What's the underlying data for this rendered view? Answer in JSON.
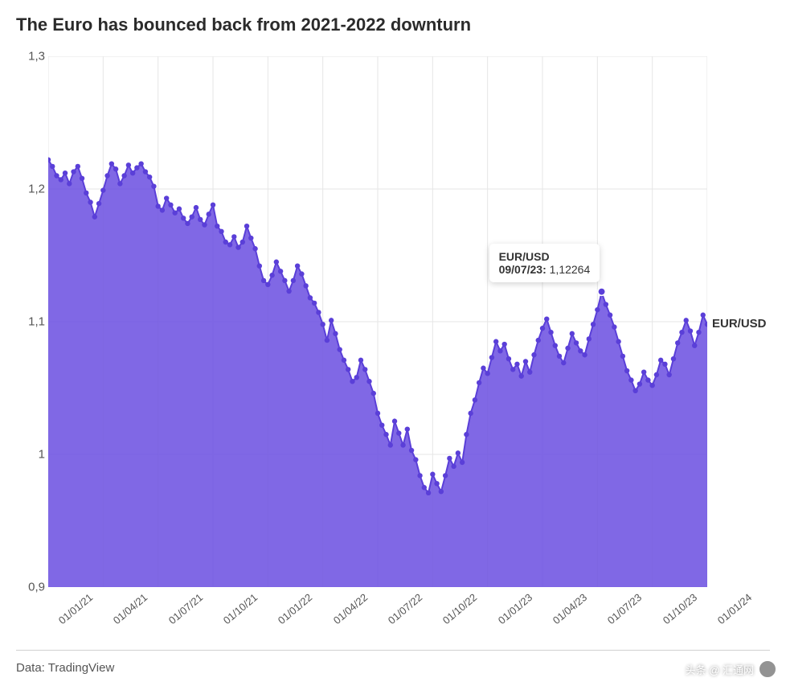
{
  "title": "The Euro has bounced back from 2021-2022 downturn",
  "source": "Data: TradingView",
  "watermark": "头条 @ 汇通网",
  "chart": {
    "type": "area",
    "series_name": "EUR/USD",
    "background_color": "#ffffff",
    "grid_color": "#e6e6e6",
    "axis_color": "#cccccc",
    "line_color": "#5a3fd8",
    "fill_color": "#6a4ee0",
    "fill_opacity": 0.85,
    "marker_color": "#5a3fd8",
    "marker_radius": 3.2,
    "line_width": 2,
    "title_fontsize": 22,
    "label_fontsize": 15,
    "tick_fontsize": 13,
    "ylim": [
      0.9,
      1.3
    ],
    "yticks": [
      0.9,
      1.0,
      1.1,
      1.2,
      1.3
    ],
    "ytick_labels": [
      "0,9",
      "1",
      "1,1",
      "1,2",
      "1,3"
    ],
    "x_categories": [
      "01/01/21",
      "01/04/21",
      "01/07/21",
      "01/10/21",
      "01/01/22",
      "01/04/22",
      "01/07/22",
      "01/10/22",
      "01/01/23",
      "01/04/23",
      "01/07/23",
      "01/10/23",
      "01/01/24"
    ],
    "x_tick_indices": [
      0,
      13,
      26,
      39,
      52,
      65,
      78,
      91,
      104,
      117,
      130,
      143,
      156
    ],
    "tooltip": {
      "series": "EUR/USD",
      "date": "09/07/23",
      "value": "1,12264",
      "y_value": 1.12264,
      "data_index": 131
    },
    "values": [
      1.222,
      1.217,
      1.21,
      1.207,
      1.212,
      1.204,
      1.213,
      1.217,
      1.208,
      1.197,
      1.19,
      1.179,
      1.189,
      1.199,
      1.21,
      1.219,
      1.215,
      1.204,
      1.21,
      1.218,
      1.212,
      1.216,
      1.219,
      1.213,
      1.209,
      1.202,
      1.187,
      1.184,
      1.193,
      1.188,
      1.182,
      1.185,
      1.178,
      1.174,
      1.179,
      1.186,
      1.177,
      1.173,
      1.181,
      1.188,
      1.172,
      1.168,
      1.16,
      1.158,
      1.164,
      1.156,
      1.16,
      1.172,
      1.163,
      1.155,
      1.142,
      1.131,
      1.128,
      1.135,
      1.145,
      1.138,
      1.131,
      1.123,
      1.131,
      1.142,
      1.136,
      1.127,
      1.118,
      1.114,
      1.107,
      1.098,
      1.086,
      1.101,
      1.091,
      1.079,
      1.071,
      1.064,
      1.055,
      1.058,
      1.071,
      1.064,
      1.055,
      1.046,
      1.031,
      1.022,
      1.015,
      1.007,
      1.025,
      1.016,
      1.007,
      1.019,
      1.003,
      0.996,
      0.984,
      0.975,
      0.971,
      0.985,
      0.978,
      0.972,
      0.984,
      0.997,
      0.991,
      1.001,
      0.994,
      1.015,
      1.031,
      1.041,
      1.054,
      1.065,
      1.061,
      1.073,
      1.085,
      1.078,
      1.083,
      1.072,
      1.064,
      1.068,
      1.059,
      1.07,
      1.062,
      1.075,
      1.086,
      1.095,
      1.102,
      1.092,
      1.082,
      1.074,
      1.069,
      1.08,
      1.091,
      1.084,
      1.078,
      1.075,
      1.087,
      1.098,
      1.109,
      1.122,
      1.113,
      1.105,
      1.096,
      1.085,
      1.074,
      1.063,
      1.056,
      1.048,
      1.053,
      1.062,
      1.056,
      1.052,
      1.06,
      1.071,
      1.068,
      1.06,
      1.072,
      1.084,
      1.092,
      1.101,
      1.093,
      1.082,
      1.092,
      1.105,
      1.098
    ]
  }
}
